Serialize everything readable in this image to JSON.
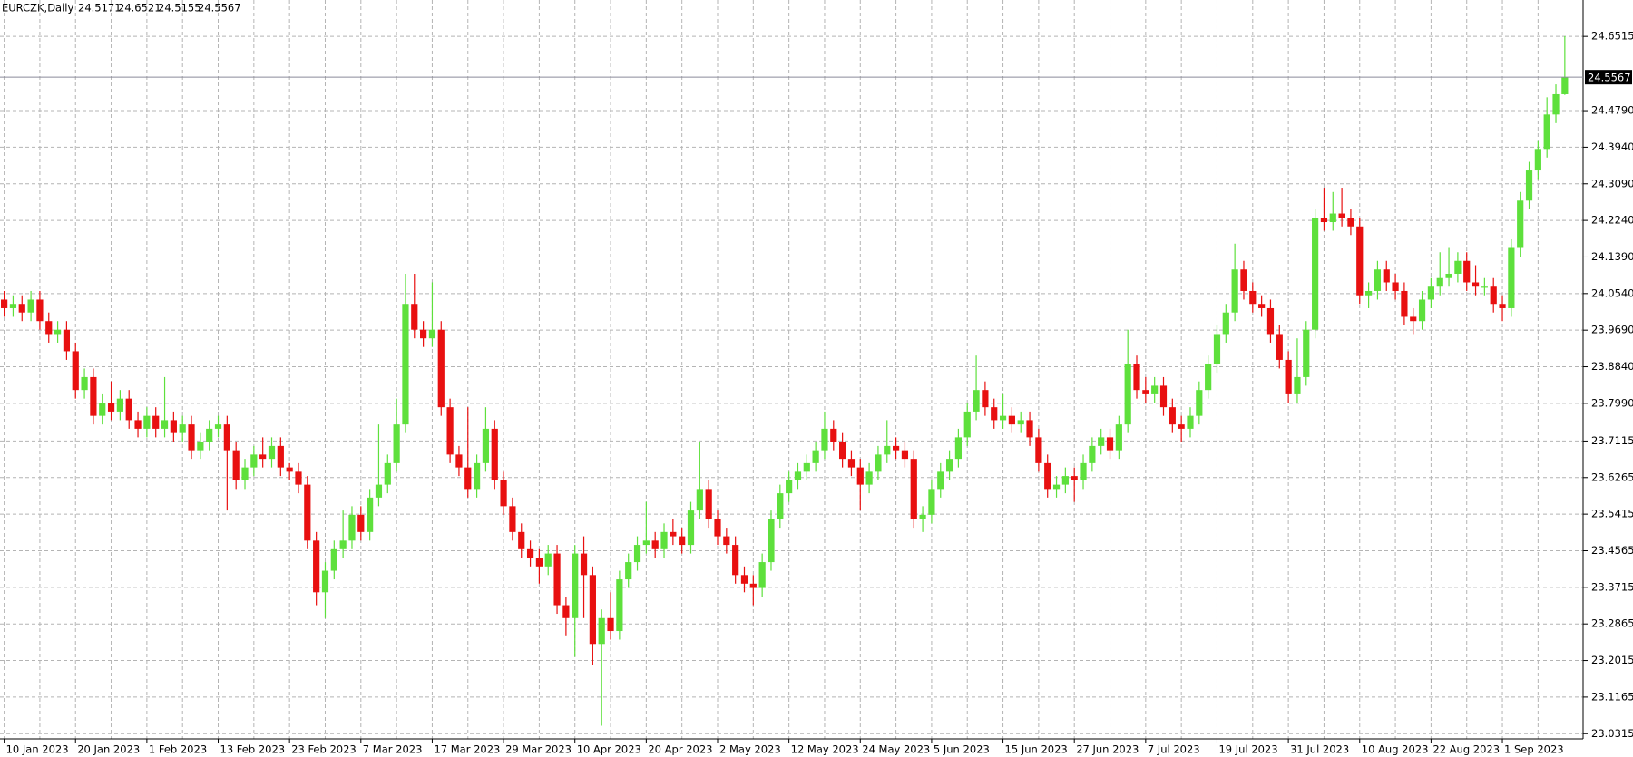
{
  "chart_data": {
    "type": "candlestick",
    "title": "EURCZK,Daily",
    "header_values": [
      24.5171,
      24.6521,
      24.5155,
      24.5567
    ],
    "current_price": 24.5567,
    "up_color": "#5ee03c",
    "down_color": "#e81010",
    "grid": true,
    "ylim": [
      23.0194,
      24.7361
    ],
    "yticks": [
      24.6515,
      {
        "value": 24.479,
        "label": "24.4790"
      },
      {
        "value": 24.394,
        "label": "24.3940"
      },
      {
        "value": 24.309,
        "label": "24.3090"
      },
      {
        "value": 24.224,
        "label": "24.2240"
      },
      {
        "value": 24.139,
        "label": "24.1390"
      },
      {
        "value": 24.054,
        "label": "24.0540"
      },
      {
        "value": 23.969,
        "label": "23.9690"
      },
      {
        "value": 23.884,
        "label": "23.8840"
      },
      {
        "value": 23.799,
        "label": "23.7990"
      },
      23.7115,
      23.6265,
      23.5415,
      23.4565,
      23.3715,
      23.2865,
      23.2015,
      23.1165,
      23.0315
    ],
    "categories": [
      "10 Jan 2023",
      null,
      null,
      null,
      null,
      null,
      null,
      null,
      "20 Jan 2023",
      null,
      null,
      null,
      null,
      null,
      null,
      null,
      "1 Feb 2023",
      null,
      null,
      null,
      null,
      null,
      null,
      null,
      "13 Feb 2023",
      null,
      null,
      null,
      null,
      null,
      null,
      null,
      "23 Feb 2023",
      null,
      null,
      null,
      null,
      null,
      null,
      null,
      "7 Mar 2023",
      null,
      null,
      null,
      null,
      null,
      null,
      null,
      "17 Mar 2023",
      null,
      null,
      null,
      null,
      null,
      null,
      null,
      "29 Mar 2023",
      null,
      null,
      null,
      null,
      null,
      null,
      null,
      "10 Apr 2023",
      null,
      null,
      null,
      null,
      null,
      null,
      null,
      "20 Apr 2023",
      null,
      null,
      null,
      null,
      null,
      null,
      null,
      "2 May 2023",
      null,
      null,
      null,
      null,
      null,
      null,
      null,
      "12 May 2023",
      null,
      null,
      null,
      null,
      null,
      null,
      null,
      "24 May 2023",
      null,
      null,
      null,
      null,
      null,
      null,
      null,
      "5 Jun 2023",
      null,
      null,
      null,
      null,
      null,
      null,
      null,
      "15 Jun 2023",
      null,
      null,
      null,
      null,
      null,
      null,
      null,
      "27 Jun 2023",
      null,
      null,
      null,
      null,
      null,
      null,
      null,
      "7 Jul 2023",
      null,
      null,
      null,
      null,
      null,
      null,
      null,
      "19 Jul 2023",
      null,
      null,
      null,
      null,
      null,
      null,
      null,
      "31 Jul 2023",
      null,
      null,
      null,
      null,
      null,
      null,
      null,
      "10 Aug 2023",
      null,
      null,
      null,
      null,
      null,
      null,
      null,
      "22 Aug 2023",
      null,
      null,
      null,
      null,
      null,
      null,
      null,
      "1 Sep 2023",
      null,
      null,
      null,
      null,
      null,
      null,
      null
    ],
    "open": [
      24.04,
      24.02,
      24.03,
      24.01,
      24.04,
      23.99,
      23.96,
      23.97,
      23.92,
      23.83,
      23.86,
      23.77,
      23.8,
      23.78,
      23.81,
      23.76,
      23.74,
      23.77,
      23.74,
      23.76,
      23.73,
      23.75,
      23.69,
      23.71,
      23.74,
      23.75,
      23.69,
      23.62,
      23.65,
      23.68,
      23.67,
      23.7,
      23.65,
      23.64,
      23.61,
      23.48,
      23.36,
      23.41,
      23.46,
      23.48,
      23.54,
      23.5,
      23.58,
      23.61,
      23.66,
      23.75,
      24.03,
      23.97,
      23.95,
      23.97,
      23.79,
      23.68,
      23.65,
      23.6,
      23.66,
      23.74,
      23.62,
      23.56,
      23.5,
      23.46,
      23.44,
      23.42,
      23.45,
      23.33,
      23.3,
      23.45,
      23.4,
      23.24,
      23.3,
      23.27,
      23.39,
      23.43,
      23.47,
      23.48,
      23.46,
      23.5,
      23.49,
      23.47,
      23.55,
      23.6,
      23.53,
      23.49,
      23.47,
      23.4,
      23.38,
      23.37,
      23.43,
      23.53,
      23.59,
      23.62,
      23.64,
      23.66,
      23.69,
      23.74,
      23.71,
      23.67,
      23.65,
      23.61,
      23.64,
      23.68,
      23.7,
      23.69,
      23.67,
      23.53,
      23.54,
      23.6,
      23.64,
      23.67,
      23.72,
      23.78,
      23.83,
      23.79,
      23.76,
      23.77,
      23.75,
      23.76,
      23.72,
      23.66,
      23.6,
      23.61,
      23.63,
      23.62,
      23.66,
      23.7,
      23.72,
      23.69,
      23.75,
      23.89,
      23.83,
      23.82,
      23.84,
      23.79,
      23.75,
      23.74,
      23.77,
      23.83,
      23.89,
      23.96,
      24.01,
      24.11,
      24.06,
      24.03,
      24.02,
      23.96,
      23.9,
      23.82,
      23.86,
      23.97,
      24.23,
      24.22,
      24.24,
      24.23,
      24.21,
      24.05,
      24.06,
      24.11,
      24.08,
      24.06,
      24.0,
      23.99,
      24.04,
      24.07,
      24.09,
      24.1,
      24.13,
      24.08,
      24.07,
      24.07,
      24.03,
      24.02,
      24.16,
      24.27,
      24.34,
      24.39,
      24.47,
      24.5171
    ],
    "high": [
      24.06,
      24.05,
      24.05,
      24.06,
      24.06,
      24.01,
      23.99,
      23.99,
      23.94,
      23.88,
      23.88,
      23.82,
      23.85,
      23.83,
      23.83,
      23.78,
      23.79,
      23.79,
      23.86,
      23.78,
      23.77,
      23.77,
      23.73,
      23.76,
      23.77,
      23.77,
      23.71,
      23.67,
      23.7,
      23.72,
      23.72,
      23.72,
      23.66,
      23.66,
      23.63,
      23.5,
      23.43,
      23.48,
      23.55,
      23.56,
      23.56,
      23.6,
      23.75,
      23.68,
      23.81,
      24.1,
      24.1,
      23.99,
      24.08,
      23.99,
      23.81,
      23.7,
      23.79,
      23.68,
      23.79,
      23.76,
      23.64,
      23.58,
      23.52,
      23.48,
      23.46,
      23.47,
      23.47,
      23.35,
      23.47,
      23.49,
      23.42,
      23.32,
      23.36,
      23.41,
      23.45,
      23.49,
      23.57,
      23.5,
      23.52,
      23.53,
      23.51,
      23.57,
      23.71,
      23.62,
      23.55,
      23.51,
      23.49,
      23.42,
      23.4,
      23.45,
      23.55,
      23.61,
      23.64,
      23.66,
      23.68,
      23.71,
      23.78,
      23.76,
      23.73,
      23.69,
      23.67,
      23.66,
      23.7,
      23.76,
      23.72,
      23.71,
      23.69,
      23.56,
      23.62,
      23.66,
      23.69,
      23.74,
      23.8,
      23.91,
      23.85,
      23.81,
      23.82,
      23.79,
      23.78,
      23.78,
      23.74,
      23.68,
      23.63,
      23.65,
      23.65,
      23.68,
      23.72,
      23.74,
      23.74,
      23.77,
      23.97,
      23.91,
      23.86,
      23.86,
      23.86,
      23.81,
      23.77,
      23.79,
      23.85,
      23.91,
      23.98,
      24.03,
      24.17,
      24.13,
      24.08,
      24.05,
      24.04,
      23.98,
      23.92,
      23.95,
      23.99,
      24.25,
      24.3,
      24.29,
      24.3,
      24.25,
      24.23,
      24.08,
      24.13,
      24.13,
      24.1,
      24.08,
      24.02,
      24.06,
      24.09,
      24.15,
      24.16,
      24.15,
      24.15,
      24.12,
      24.09,
      24.09,
      24.05,
      24.18,
      24.29,
      24.36,
      24.41,
      24.51,
      24.54,
      24.6521
    ],
    "low": [
      24.0,
      24.0,
      23.99,
      23.99,
      23.97,
      23.94,
      23.94,
      23.9,
      23.81,
      23.81,
      23.75,
      23.75,
      23.76,
      23.76,
      23.74,
      23.72,
      23.72,
      23.72,
      23.72,
      23.71,
      23.71,
      23.67,
      23.67,
      23.69,
      23.72,
      23.55,
      23.6,
      23.6,
      23.63,
      23.65,
      23.65,
      23.63,
      23.62,
      23.59,
      23.46,
      23.33,
      23.3,
      23.39,
      23.44,
      23.46,
      23.48,
      23.48,
      23.56,
      23.59,
      23.64,
      23.73,
      23.95,
      23.93,
      23.93,
      23.77,
      23.66,
      23.63,
      23.58,
      23.58,
      23.64,
      23.6,
      23.54,
      23.48,
      23.44,
      23.42,
      23.38,
      23.4,
      23.31,
      23.26,
      23.21,
      23.3,
      23.19,
      23.05,
      23.25,
      23.25,
      23.37,
      23.41,
      23.45,
      23.44,
      23.44,
      23.47,
      23.45,
      23.45,
      23.53,
      23.51,
      23.47,
      23.45,
      23.38,
      23.36,
      23.33,
      23.35,
      23.41,
      23.51,
      23.57,
      23.6,
      23.62,
      23.64,
      23.67,
      23.69,
      23.65,
      23.63,
      23.55,
      23.59,
      23.62,
      23.66,
      23.67,
      23.65,
      23.51,
      23.5,
      23.52,
      23.58,
      23.62,
      23.65,
      23.7,
      23.76,
      23.77,
      23.74,
      23.74,
      23.73,
      23.73,
      23.7,
      23.64,
      23.58,
      23.58,
      23.59,
      23.57,
      23.6,
      23.64,
      23.68,
      23.67,
      23.67,
      23.73,
      23.81,
      23.8,
      23.8,
      23.77,
      23.73,
      23.71,
      23.72,
      23.75,
      23.81,
      23.87,
      23.94,
      23.99,
      24.04,
      24.01,
      24.0,
      23.94,
      23.88,
      23.8,
      23.8,
      23.84,
      23.95,
      24.2,
      24.2,
      24.21,
      24.19,
      24.03,
      24.02,
      24.04,
      24.06,
      24.04,
      23.98,
      23.96,
      23.97,
      24.02,
      24.05,
      24.07,
      24.08,
      24.06,
      24.05,
      24.05,
      24.01,
      23.99,
      24.0,
      24.14,
      24.25,
      24.32,
      24.37,
      24.45,
      24.5155
    ],
    "close": [
      24.02,
      24.03,
      24.01,
      24.04,
      23.99,
      23.96,
      23.97,
      23.92,
      23.83,
      23.86,
      23.77,
      23.8,
      23.78,
      23.81,
      23.76,
      23.74,
      23.77,
      23.74,
      23.76,
      23.73,
      23.75,
      23.69,
      23.71,
      23.74,
      23.75,
      23.69,
      23.62,
      23.65,
      23.68,
      23.67,
      23.7,
      23.65,
      23.64,
      23.61,
      23.48,
      23.36,
      23.41,
      23.46,
      23.48,
      23.54,
      23.5,
      23.58,
      23.61,
      23.66,
      23.75,
      24.03,
      23.97,
      23.95,
      23.97,
      23.79,
      23.68,
      23.65,
      23.6,
      23.66,
      23.74,
      23.62,
      23.56,
      23.5,
      23.46,
      23.44,
      23.42,
      23.45,
      23.33,
      23.3,
      23.45,
      23.4,
      23.24,
      23.3,
      23.27,
      23.39,
      23.43,
      23.47,
      23.48,
      23.46,
      23.5,
      23.49,
      23.47,
      23.55,
      23.6,
      23.53,
      23.49,
      23.47,
      23.4,
      23.38,
      23.37,
      23.43,
      23.53,
      23.59,
      23.62,
      23.64,
      23.66,
      23.69,
      23.74,
      23.71,
      23.67,
      23.65,
      23.61,
      23.64,
      23.68,
      23.7,
      23.69,
      23.67,
      23.53,
      23.54,
      23.6,
      23.64,
      23.67,
      23.72,
      23.78,
      23.83,
      23.79,
      23.76,
      23.77,
      23.75,
      23.76,
      23.72,
      23.66,
      23.6,
      23.61,
      23.63,
      23.62,
      23.66,
      23.7,
      23.72,
      23.69,
      23.75,
      23.89,
      23.83,
      23.82,
      23.84,
      23.79,
      23.75,
      23.74,
      23.77,
      23.83,
      23.89,
      23.96,
      24.01,
      24.11,
      24.06,
      24.03,
      24.02,
      23.96,
      23.9,
      23.82,
      23.86,
      23.97,
      24.23,
      24.22,
      24.24,
      24.23,
      24.21,
      24.05,
      24.06,
      24.11,
      24.08,
      24.06,
      24.0,
      23.99,
      24.04,
      24.07,
      24.09,
      24.1,
      24.13,
      24.08,
      24.07,
      24.07,
      24.03,
      24.02,
      24.16,
      24.27,
      24.34,
      24.39,
      24.47,
      24.5171,
      24.5567
    ]
  }
}
